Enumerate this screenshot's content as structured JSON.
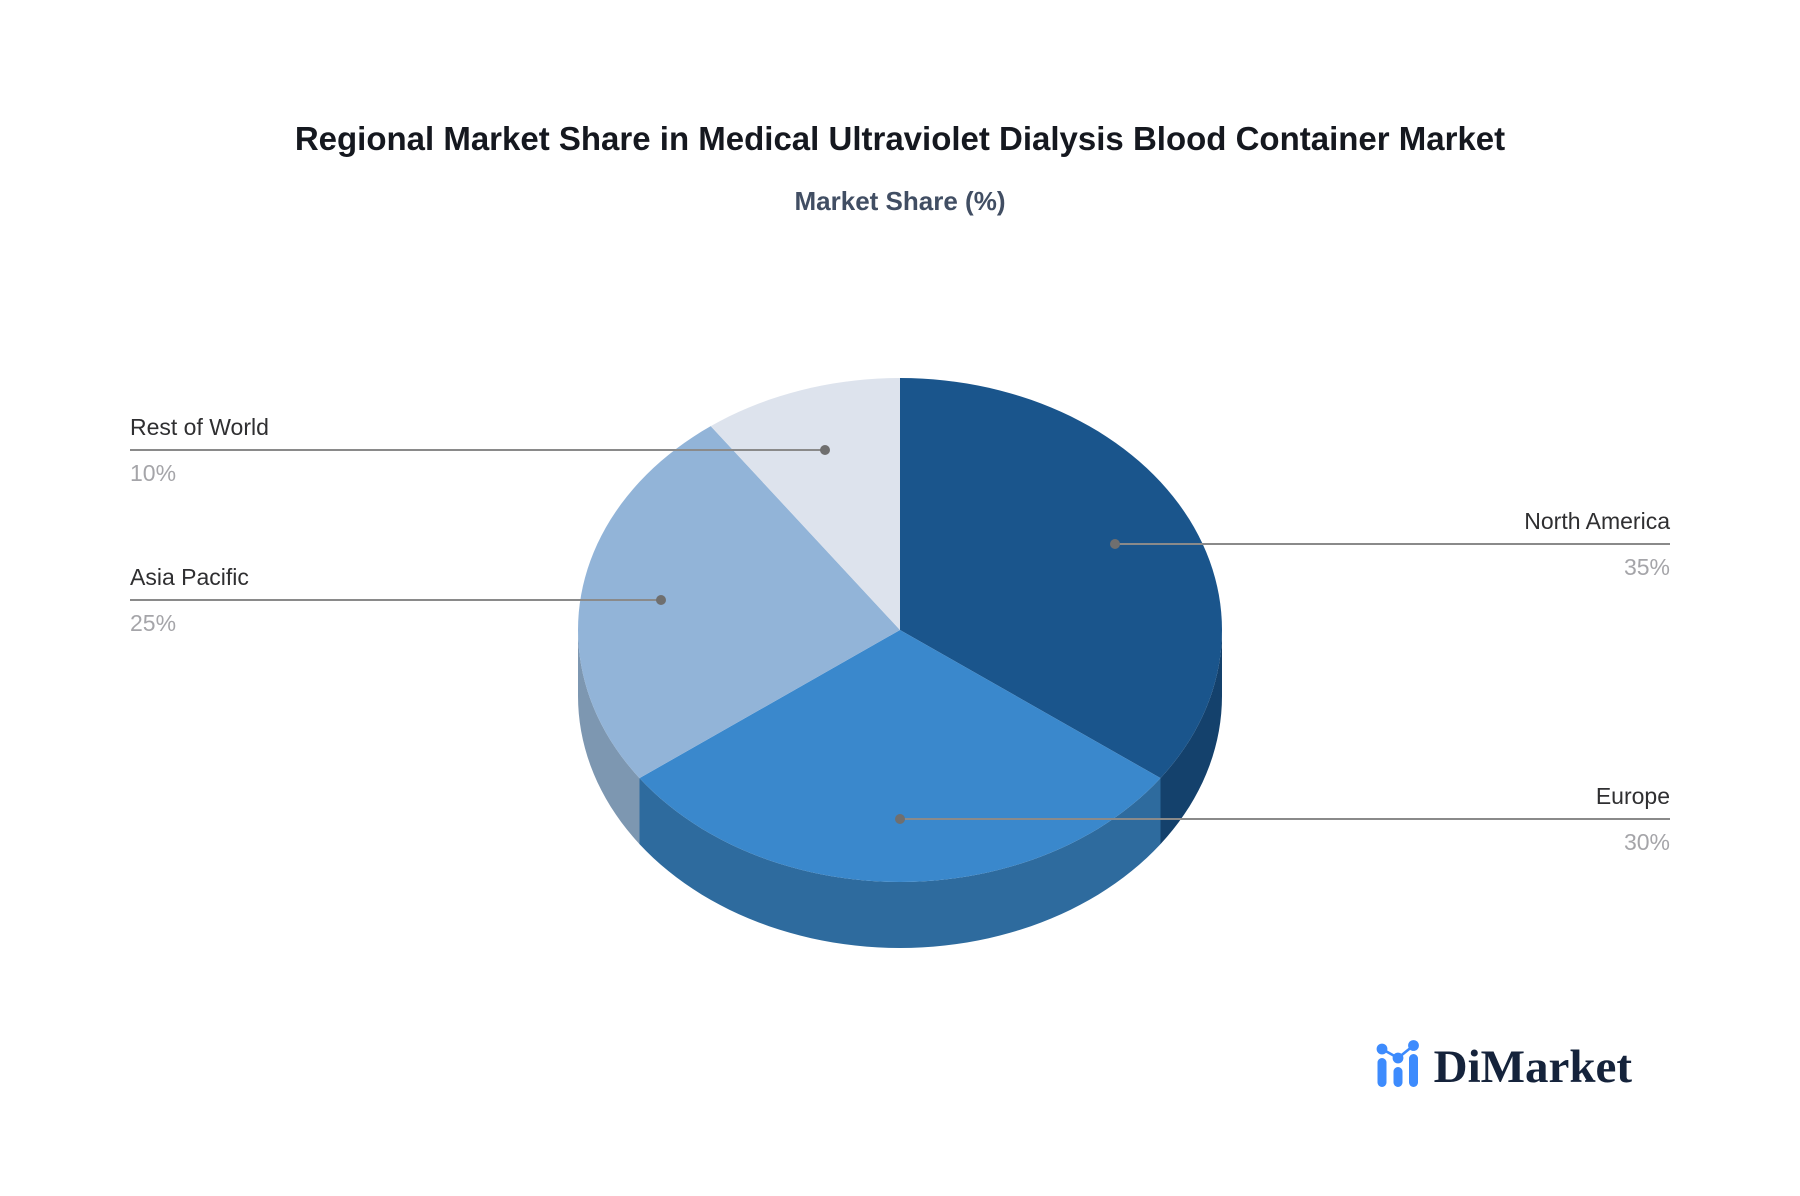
{
  "title": "Regional Market Share in Medical Ultraviolet Dialysis Blood Container Market",
  "subtitle": "Market Share (%)",
  "chart_data": {
    "type": "pie",
    "style": "3d-pie",
    "title": "Regional Market Share in Medical Ultraviolet Dialysis Blood Container Market",
    "subtitle": "Market Share (%)",
    "start_angle": "top",
    "direction": "clockwise",
    "legend": "none",
    "categories": [
      "North America",
      "Europe",
      "Asia Pacific",
      "Rest of World"
    ],
    "values": [
      35,
      30,
      25,
      10
    ],
    "percent_labels": [
      "35%",
      "30%",
      "25%",
      "10%"
    ],
    "slice_colors": [
      "#1a558c",
      "#3a88cc",
      "#92b4d8",
      "#dde3ed"
    ],
    "slice_side_colors": [
      "#14416c",
      "#2e6b9e",
      "#7d97b1",
      "#b9c6d6"
    ],
    "label_name_color": "#2f2f31",
    "label_percent_color": "#a5a5a9",
    "leader_line_color": "#8a8a8a",
    "leader_dot_color": "#6f6f6f"
  },
  "brand": {
    "name": "DiMarket",
    "accent": "#3d8bfd",
    "text_color": "#15233b"
  }
}
